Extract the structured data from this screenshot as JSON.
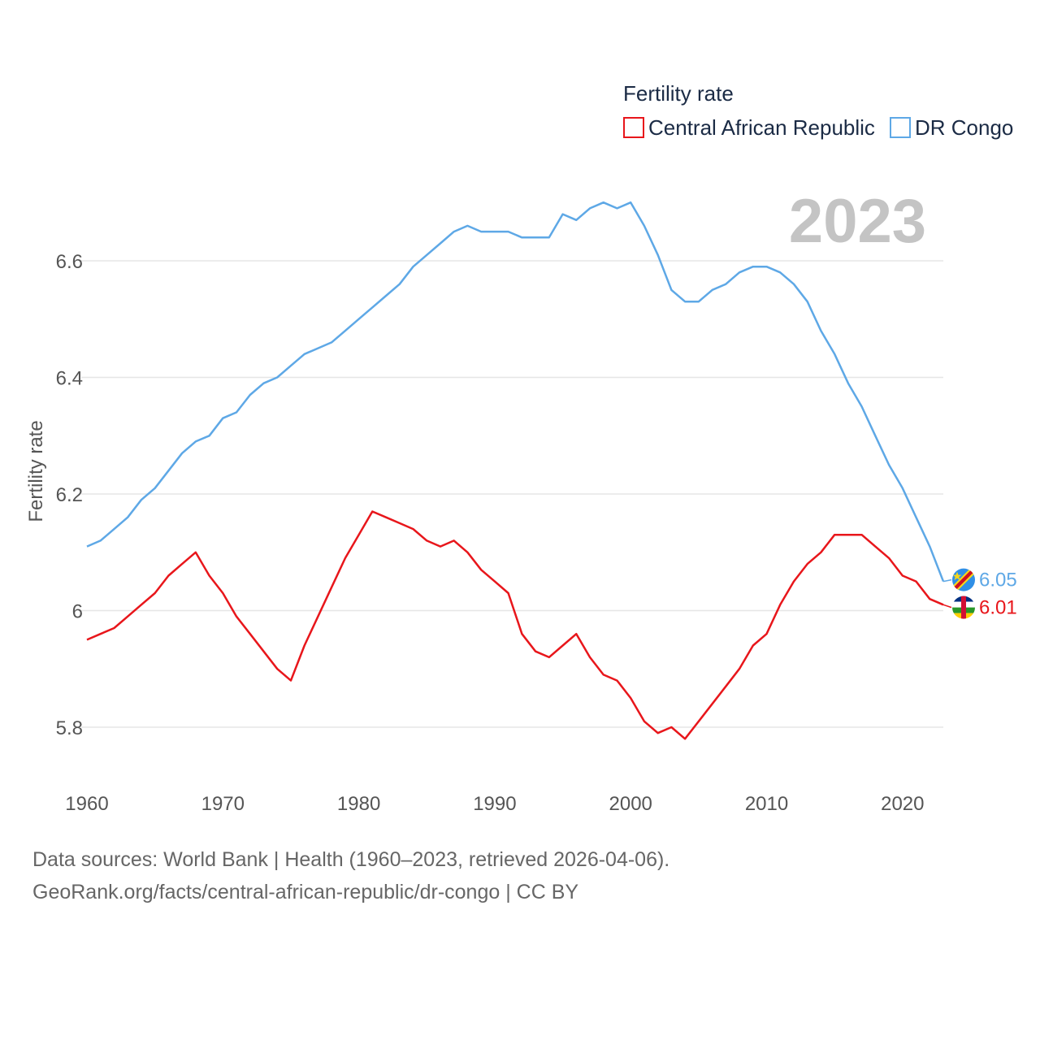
{
  "chart_data": {
    "type": "line",
    "title": "Fertility rate",
    "year_label": "2023",
    "ylabel": "Fertility rate",
    "xlabel": "",
    "xlim": [
      1960,
      2023
    ],
    "ylim": [
      5.7,
      6.78
    ],
    "x_ticks": [
      1960,
      1970,
      1980,
      1990,
      2000,
      2010,
      2020
    ],
    "y_ticks": [
      5.8,
      6.0,
      6.2,
      6.4,
      6.6
    ],
    "y_tick_labels": [
      "5.8",
      "6",
      "6.2",
      "6.4",
      "6.6"
    ],
    "grid": true,
    "legend_position": "top-right",
    "colors": {
      "car": "#e8161b",
      "drc": "#5ea8e6",
      "grid": "#e6e6e6",
      "year": "#c4c4c4"
    },
    "x": [
      1960,
      1961,
      1962,
      1963,
      1964,
      1965,
      1966,
      1967,
      1968,
      1969,
      1970,
      1971,
      1972,
      1973,
      1974,
      1975,
      1976,
      1977,
      1978,
      1979,
      1980,
      1981,
      1982,
      1983,
      1984,
      1985,
      1986,
      1987,
      1988,
      1989,
      1990,
      1991,
      1992,
      1993,
      1994,
      1995,
      1996,
      1997,
      1998,
      1999,
      2000,
      2001,
      2002,
      2003,
      2004,
      2005,
      2006,
      2007,
      2008,
      2009,
      2010,
      2011,
      2012,
      2013,
      2014,
      2015,
      2016,
      2017,
      2018,
      2019,
      2020,
      2021,
      2022,
      2023
    ],
    "series": [
      {
        "name": "Central African Republic",
        "key": "car",
        "end_value": "6.01",
        "values": [
          5.95,
          5.96,
          5.97,
          5.99,
          6.01,
          6.03,
          6.06,
          6.08,
          6.1,
          6.06,
          6.03,
          5.99,
          5.96,
          5.93,
          5.9,
          5.88,
          5.94,
          5.99,
          6.04,
          6.09,
          6.13,
          6.17,
          6.16,
          6.15,
          6.14,
          6.12,
          6.11,
          6.12,
          6.1,
          6.07,
          6.05,
          6.03,
          5.96,
          5.93,
          5.92,
          5.94,
          5.96,
          5.92,
          5.89,
          5.88,
          5.85,
          5.81,
          5.79,
          5.8,
          5.78,
          5.81,
          5.84,
          5.87,
          5.9,
          5.94,
          5.96,
          6.01,
          6.05,
          6.08,
          6.1,
          6.13,
          6.13,
          6.13,
          6.11,
          6.09,
          6.06,
          6.05,
          6.02,
          6.01
        ]
      },
      {
        "name": "DR Congo",
        "key": "drc",
        "end_value": "6.05",
        "values": [
          6.11,
          6.12,
          6.14,
          6.16,
          6.19,
          6.21,
          6.24,
          6.27,
          6.29,
          6.3,
          6.33,
          6.34,
          6.37,
          6.39,
          6.4,
          6.42,
          6.44,
          6.45,
          6.46,
          6.48,
          6.5,
          6.52,
          6.54,
          6.56,
          6.59,
          6.61,
          6.63,
          6.65,
          6.66,
          6.65,
          6.65,
          6.65,
          6.64,
          6.64,
          6.64,
          6.68,
          6.67,
          6.69,
          6.7,
          6.69,
          6.7,
          6.66,
          6.61,
          6.55,
          6.53,
          6.53,
          6.55,
          6.56,
          6.58,
          6.59,
          6.59,
          6.58,
          6.56,
          6.53,
          6.48,
          6.44,
          6.39,
          6.35,
          6.3,
          6.25,
          6.21,
          6.16,
          6.11,
          6.05
        ]
      }
    ]
  },
  "footer": {
    "line1": "Data sources: World Bank | Health (1960–2023, retrieved 2026-04-06).",
    "line2": "GeoRank.org/facts/central-african-republic/dr-congo | CC BY"
  }
}
